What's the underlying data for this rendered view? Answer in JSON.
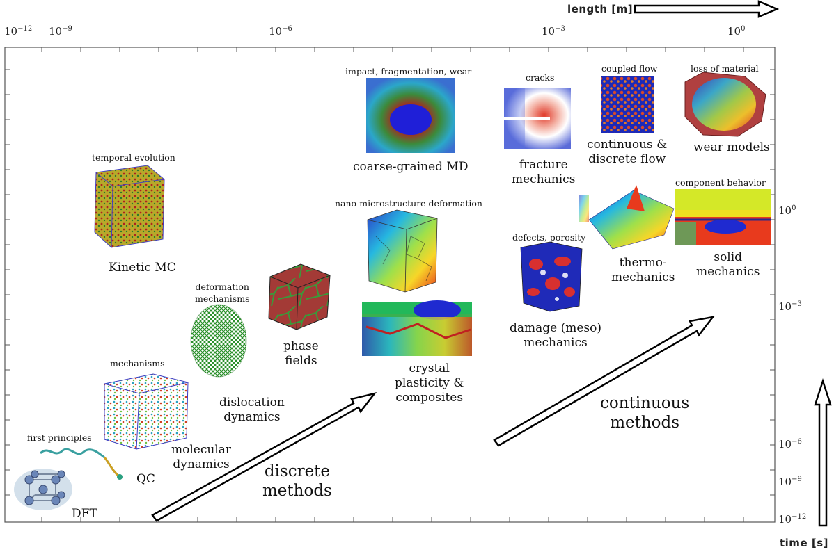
{
  "axes": {
    "x_title": "length [m]",
    "y_title": "time [s]",
    "x_ticks": [
      {
        "base": "10",
        "exp": "−12"
      },
      {
        "base": "10",
        "exp": "−9"
      },
      {
        "base": "10",
        "exp": "−6"
      },
      {
        "base": "10",
        "exp": "−3"
      },
      {
        "base": "10",
        "exp": "0"
      }
    ],
    "y_ticks": [
      {
        "base": "10",
        "exp": "0"
      },
      {
        "base": "10",
        "exp": "−3"
      },
      {
        "base": "10",
        "exp": "−6"
      },
      {
        "base": "10",
        "exp": "−9"
      },
      {
        "base": "10",
        "exp": "−12"
      }
    ]
  },
  "methods": {
    "dft": {
      "label": "DFT"
    },
    "first_principles": {
      "caption": "first principles"
    },
    "qc": {
      "label": "QC"
    },
    "md": {
      "caption": "mechanisms",
      "label": "molecular\ndynamics"
    },
    "kmc": {
      "caption": "temporal evolution",
      "label": "Kinetic MC"
    },
    "dd": {
      "caption": "deformation\nmechanisms",
      "label": "dislocation\ndynamics"
    },
    "phase": {
      "label": "phase\nfields"
    },
    "cgmd": {
      "caption": "impact, fragmentation, wear",
      "label": "coarse-grained MD"
    },
    "nano": {
      "caption": "nano-microstructure deformation"
    },
    "crystal": {
      "label": "crystal\nplasticity &\ncomposites"
    },
    "fracture": {
      "caption": "cracks",
      "label": "fracture\nmechanics"
    },
    "flow": {
      "caption": "coupled flow",
      "label": "continuous &\ndiscrete flow"
    },
    "wear": {
      "caption": "loss of material",
      "label": "wear models"
    },
    "damage": {
      "caption": "defects, porosity",
      "label": "damage (meso)\nmechanics"
    },
    "thermo": {
      "label": "thermo-\nmechanics"
    },
    "solid": {
      "caption": "component behavior",
      "label": "solid\nmechanics"
    }
  },
  "arrows": {
    "discrete": "discrete\nmethods",
    "continuous": "continuous\nmethods"
  },
  "colors": {
    "frame": "#555555",
    "arrow_fill": "#ffffff",
    "arrow_stroke": "#000000"
  }
}
